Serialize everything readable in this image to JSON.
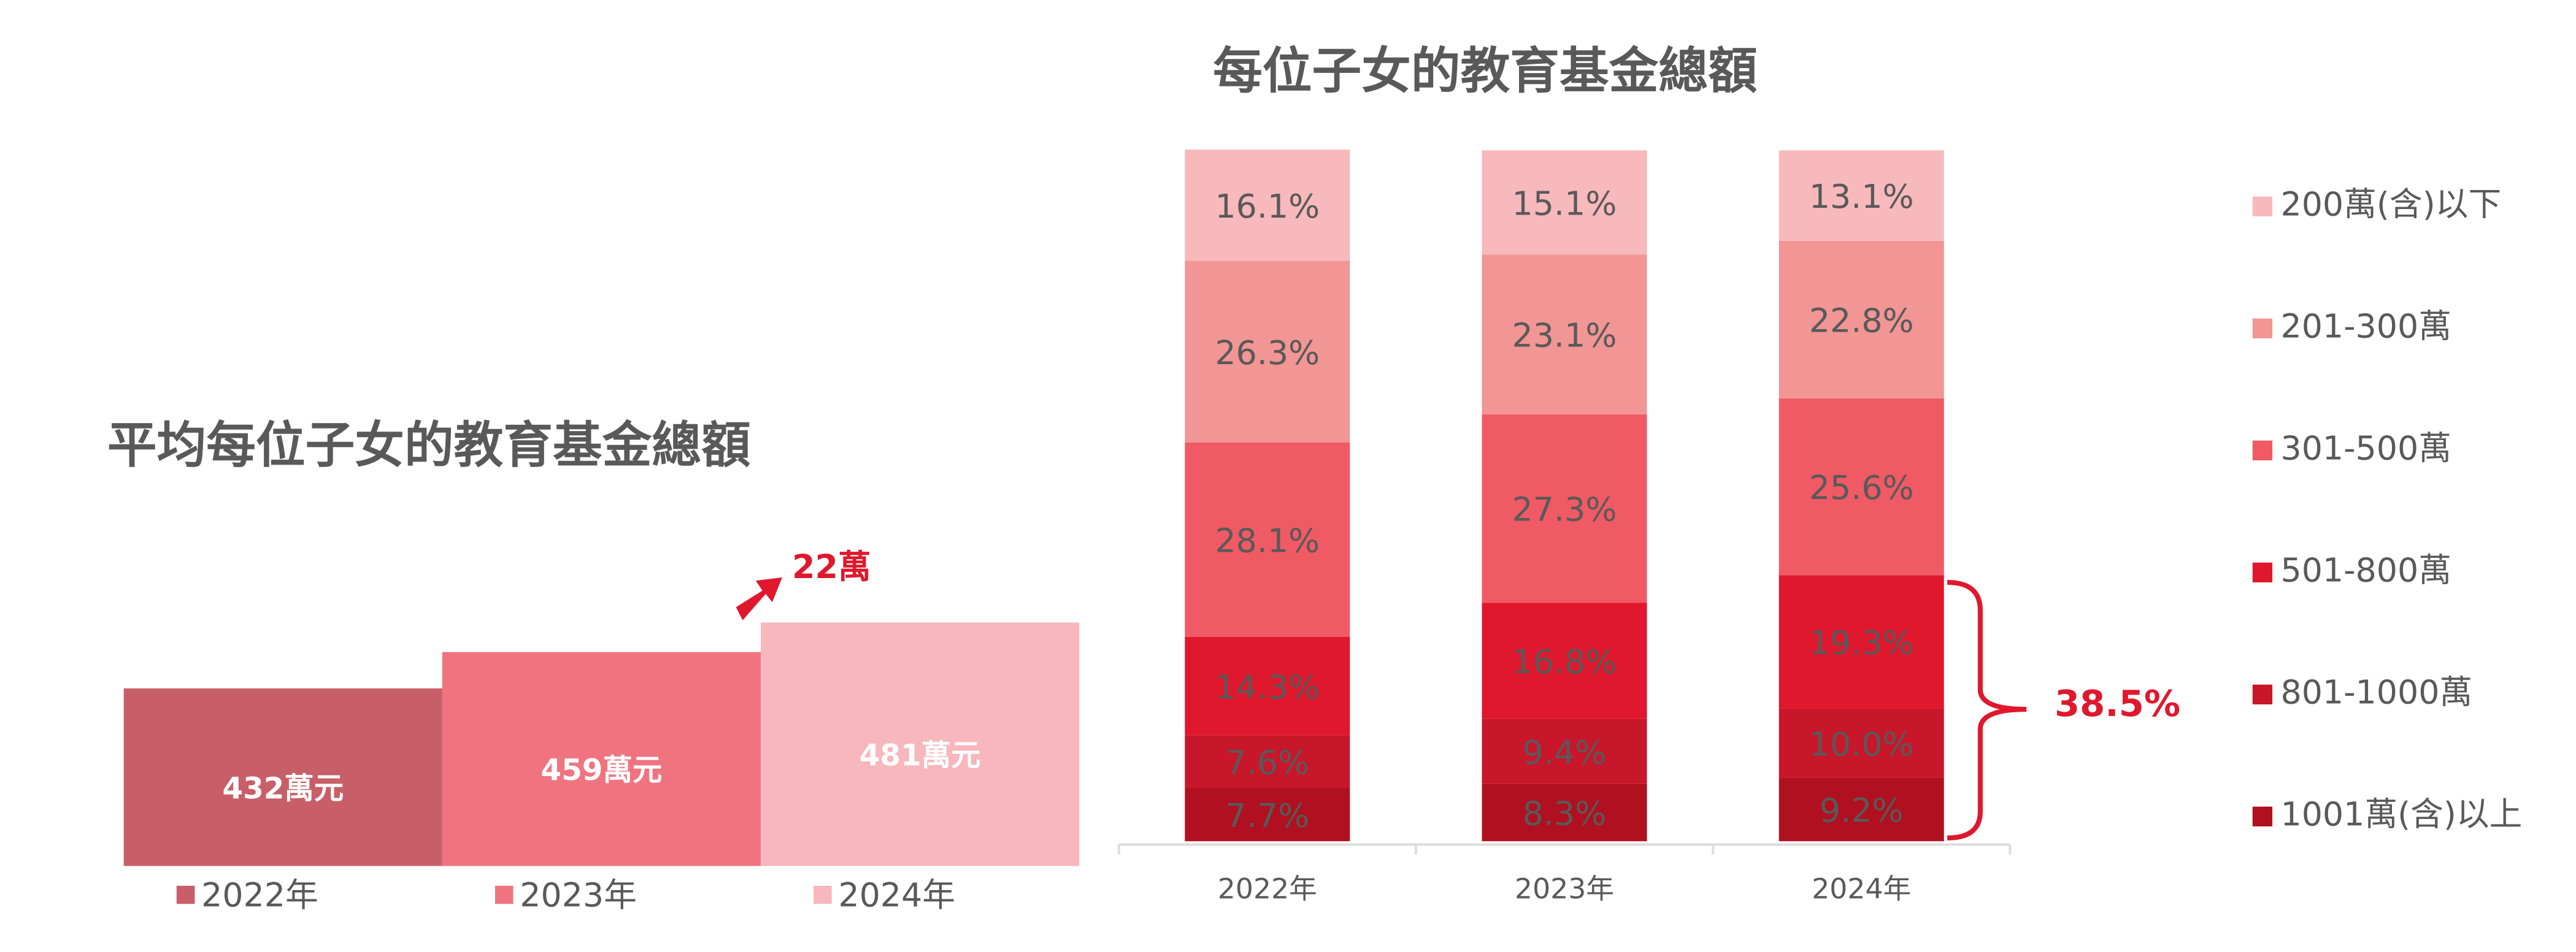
{
  "chart_data": [
    {
      "type": "bar",
      "title": "平均每位子女的教育基金總額",
      "categories": [
        "2022年",
        "2023年",
        "2024年"
      ],
      "values": [
        432,
        459,
        481
      ],
      "value_labels": [
        "432萬元",
        "459萬元",
        "481萬元"
      ],
      "colors": [
        "#c85f68",
        "#f07480",
        "#f7b7bc"
      ],
      "ylim": [
        300,
        490
      ],
      "annotation": "22萬",
      "annotation_color": "#e0182d"
    },
    {
      "type": "stacked_bar",
      "title": "每位子女的教育基金總額",
      "categories": [
        "2022年",
        "2023年",
        "2024年"
      ],
      "series": [
        {
          "name": "1001萬(含)以上",
          "color": "#b0101f",
          "values": [
            7.7,
            8.3,
            9.2
          ],
          "value_labels": [
            "7.7%",
            "8.3%",
            "9.2%"
          ]
        },
        {
          "name": "801-1000萬",
          "color": "#c8162a",
          "values": [
            7.6,
            9.4,
            10.0
          ],
          "value_labels": [
            "7.6%",
            "9.4%",
            "10.0%"
          ]
        },
        {
          "name": "501-800萬",
          "color": "#e0182d",
          "values": [
            14.3,
            16.8,
            19.3
          ],
          "value_labels": [
            "14.3%",
            "16.8%",
            "19.3%"
          ]
        },
        {
          "name": "301-500萬",
          "color": "#f05a64",
          "values": [
            28.1,
            27.3,
            25.6
          ],
          "value_labels": [
            "28.1%",
            "27.3%",
            "25.6%"
          ]
        },
        {
          "name": "201-300萬",
          "color": "#f29595",
          "values": [
            26.3,
            23.1,
            22.8
          ],
          "value_labels": [
            "26.3%",
            "23.1%",
            "22.8%"
          ]
        },
        {
          "name": "200萬(含)以下",
          "color": "#f7b9bb",
          "values": [
            16.1,
            15.1,
            13.1
          ],
          "value_labels": [
            "16.1%",
            "15.1%",
            "13.1%"
          ]
        }
      ],
      "ylim": [
        0,
        100
      ],
      "annotation": "38.5%",
      "annotation_color": "#e0182d"
    }
  ]
}
